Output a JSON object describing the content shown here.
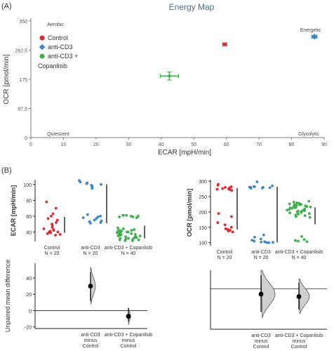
{
  "panel_labels": {
    "a": "(A)",
    "b": "(B)"
  },
  "colors": {
    "control": "#e8242c",
    "anti_cd3": "#3d86c6",
    "copanlisib": "#3cb04a",
    "axis": "#7f7f7f",
    "title": "#4a6f8a",
    "gray_fill": "#cfcfcf"
  },
  "chart_data": [
    {
      "id": "energy-map",
      "type": "scatter",
      "title": "Energy Map",
      "xlabel": "ECAR [mpH/min]",
      "ylabel": "OCR [pmol/min]",
      "xlim": [
        0,
        90
      ],
      "ylim": [
        0,
        350
      ],
      "x_ticks": [
        "0",
        "10",
        "20",
        "30",
        "40",
        "50",
        "60",
        "70",
        "80",
        "90"
      ],
      "y_ticks": [
        "0",
        "87,5",
        "175",
        "262,5",
        "350"
      ],
      "quadrant_labels": {
        "top_left": "Aerobic",
        "top_right": "Energetic",
        "bottom_left": "Quiescent",
        "bottom_right": "Glycolytic"
      },
      "legend_position": "top-left",
      "series": [
        {
          "name": "Control",
          "marker": "circle",
          "color": "#e8242c",
          "points": [
            {
              "x": 59.5,
              "y": 280,
              "xerr": 0.6,
              "yerr": 4
            }
          ]
        },
        {
          "name": "anti-CD3",
          "marker": "diamond",
          "color": "#3d86c6",
          "points": [
            {
              "x": 87,
              "y": 303,
              "xerr": 0.8,
              "yerr": 3
            }
          ]
        },
        {
          "name": "anti-CD3 + Copanlisib",
          "marker": "circle",
          "color": "#3cb04a",
          "points": [
            {
              "x": 42.5,
              "y": 185,
              "xerr": 2.8,
              "yerr": 12
            }
          ]
        }
      ]
    },
    {
      "id": "ecar-estimation",
      "type": "scatter",
      "ylabel": "ECAR [mpH/min]",
      "ylim": [
        28,
        106
      ],
      "y_ticks": [
        40,
        60,
        80,
        100
      ],
      "groups": [
        {
          "label": "Control",
          "n_label": "N = 20",
          "color": "#e8242c",
          "values": [
            78,
            70,
            63,
            60,
            57,
            55,
            52,
            50,
            48,
            46,
            44,
            43,
            42,
            41,
            40,
            40,
            39,
            38,
            37,
            36
          ],
          "summary": {
            "mean": 48,
            "lo": 39,
            "hi": 59
          }
        },
        {
          "label": "anti-CD3",
          "n_label": "N = 20",
          "color": "#3d86c6",
          "values": [
            105,
            103,
            102,
            101,
            100,
            99,
            98,
            97,
            96,
            95,
            62,
            60,
            59,
            58,
            57,
            55,
            54,
            53,
            52,
            51
          ],
          "summary": {
            "mean": 76,
            "lo": 51,
            "hi": 100
          }
        },
        {
          "label": "anti-CD3 + Copanlisib",
          "n_label": "N = 40",
          "color": "#3cb04a",
          "values": [
            61,
            61,
            61,
            60,
            60,
            60,
            59,
            59,
            58,
            45,
            44,
            43,
            42,
            42,
            41,
            41,
            40,
            40,
            39,
            39,
            38,
            38,
            37,
            37,
            36,
            36,
            35,
            35,
            34,
            34,
            33,
            33,
            32,
            32,
            31,
            31,
            30,
            30,
            29,
            29
          ],
          "summary": {
            "mean": 40,
            "lo": 32,
            "hi": 48
          }
        }
      ]
    },
    {
      "id": "ecar-difference",
      "type": "scatter",
      "ylabel": "Unpaired mean difference",
      "ylim": [
        -22,
        58
      ],
      "y_ticks": [
        -20,
        0,
        20,
        40
      ],
      "contrasts": [
        {
          "label_lines": [
            "anti-CD3",
            "minus",
            "Control"
          ],
          "mean": 30,
          "ci": [
            12,
            47
          ],
          "spread": 7
        },
        {
          "label_lines": [
            "anti-CD3 + Copanlisib",
            "minus",
            "Control"
          ],
          "mean": -7,
          "ci": [
            -13,
            3
          ],
          "spread": 3
        }
      ]
    },
    {
      "id": "ocr-estimation",
      "type": "scatter",
      "ylabel": "OCR [pmol/min]",
      "ylim": [
        90,
        305
      ],
      "y_ticks": [
        100,
        150,
        200,
        250,
        300
      ],
      "groups": [
        {
          "label": "Control",
          "n_label": "N = 20",
          "color": "#e8242c",
          "values": [
            290,
            287,
            282,
            280,
            278,
            276,
            275,
            274,
            272,
            270,
            195,
            185,
            165,
            158,
            150,
            145,
            143,
            140,
            138,
            135
          ],
          "summary": {
            "mean": 218,
            "lo": 143,
            "hi": 278
          }
        },
        {
          "label": "anti-CD3",
          "n_label": "N = 20",
          "color": "#3d86c6",
          "values": [
            298,
            285,
            283,
            282,
            281,
            280,
            280,
            279,
            278,
            277,
            125,
            118,
            112,
            108,
            105,
            103,
            102,
            101,
            100,
            100
          ],
          "summary": {
            "mean": 195,
            "lo": 101,
            "hi": 282
          }
        },
        {
          "label": "anti-CD3 + Copanlisib",
          "n_label": "N = 40",
          "color": "#3cb04a",
          "values": [
            235,
            232,
            230,
            228,
            226,
            225,
            224,
            223,
            222,
            221,
            220,
            219,
            218,
            217,
            216,
            215,
            214,
            213,
            212,
            210,
            208,
            206,
            205,
            204,
            203,
            202,
            200,
            198,
            197,
            195,
            193,
            190,
            188,
            185,
            182,
            120,
            110,
            107,
            105,
            103
          ],
          "summary": {
            "mean": 184,
            "lo": 160,
            "hi": 215
          }
        }
      ]
    },
    {
      "id": "ocr-difference",
      "type": "scatter",
      "ylabel": "",
      "ylim": [
        -165,
        75
      ],
      "y_ticks": [],
      "contrasts": [
        {
          "label_lines": [
            "anti-CD3",
            "minus",
            "Control"
          ],
          "mean": -22,
          "ci": [
            -95,
            55
          ],
          "spread": 20
        },
        {
          "label_lines": [
            "anti-CD3 + Copanlisib",
            "minus",
            "Control"
          ],
          "mean": -32,
          "ci": [
            -85,
            25
          ],
          "spread": 15
        }
      ]
    }
  ]
}
